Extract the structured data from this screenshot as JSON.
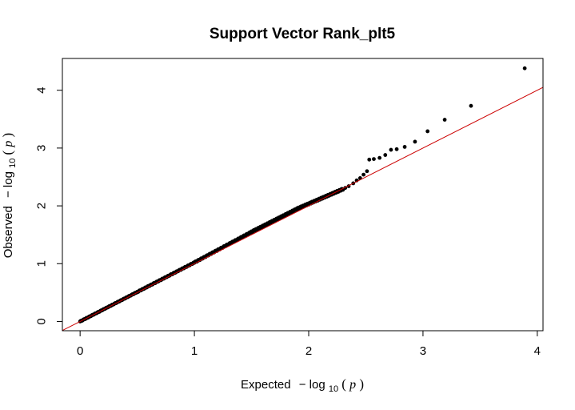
{
  "chart_data": {
    "type": "scatter",
    "title": "Support Vector Rank_plt5",
    "xlabel": {
      "text": "Expected",
      "minus": "−",
      "log": "log",
      "sub": "10",
      "open": "(",
      "var": "p",
      "close": ")"
    },
    "ylabel": {
      "text": "Observed",
      "minus": "−",
      "log": "log",
      "sub": "10",
      "open": "(",
      "var": "p",
      "close": ")"
    },
    "xlim": [
      -0.155,
      4.05
    ],
    "ylim": [
      -0.16,
      4.55
    ],
    "x_ticks": [
      0,
      1,
      2,
      3,
      4
    ],
    "x_tick_labels": [
      "0",
      "1",
      "2",
      "3",
      "4"
    ],
    "y_ticks": [
      0,
      1,
      2,
      3,
      4
    ],
    "y_tick_labels": [
      "0",
      "1",
      "2",
      "3",
      "4"
    ],
    "grid": false,
    "legend": "none",
    "reference_line": {
      "slope": 1,
      "intercept": 0,
      "color": "#cc0000"
    },
    "point_color": "#000000",
    "dense_segments": [
      {
        "x": [
          0.0,
          0.5
        ],
        "y": [
          0.0,
          0.51
        ],
        "slope_jitter": 0.004
      },
      {
        "x": [
          0.5,
          1.0
        ],
        "y": [
          0.51,
          1.02
        ],
        "slope_jitter": 0.006
      },
      {
        "x": [
          1.0,
          1.5
        ],
        "y": [
          1.02,
          1.55
        ],
        "slope_jitter": 0.008
      },
      {
        "x": [
          1.5,
          1.9
        ],
        "y": [
          1.55,
          1.95
        ],
        "slope_jitter": 0.01
      },
      {
        "x": [
          1.9,
          2.3
        ],
        "y": [
          1.95,
          2.29
        ],
        "slope_jitter": 0.012
      }
    ],
    "points": [
      [
        2.32,
        2.31
      ],
      [
        2.35,
        2.34
      ],
      [
        2.39,
        2.39
      ],
      [
        2.42,
        2.44
      ],
      [
        2.45,
        2.48
      ],
      [
        2.48,
        2.54
      ],
      [
        2.51,
        2.6
      ],
      [
        2.53,
        2.8
      ],
      [
        2.57,
        2.81
      ],
      [
        2.62,
        2.83
      ],
      [
        2.67,
        2.88
      ],
      [
        2.72,
        2.97
      ],
      [
        2.77,
        2.98
      ],
      [
        2.84,
        3.02
      ],
      [
        2.93,
        3.11
      ],
      [
        3.04,
        3.29
      ],
      [
        3.19,
        3.49
      ],
      [
        3.42,
        3.73
      ],
      [
        3.89,
        4.38
      ]
    ]
  }
}
